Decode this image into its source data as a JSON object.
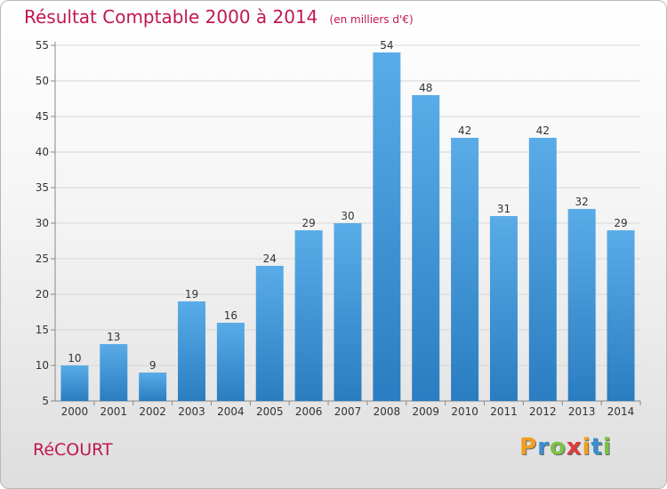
{
  "chart_data": {
    "type": "bar",
    "title": "Résultat Comptable 2000 à 2014",
    "subtitle": "(en milliers d'€)",
    "categories": [
      "2000",
      "2001",
      "2002",
      "2003",
      "2004",
      "2005",
      "2006",
      "2007",
      "2008",
      "2009",
      "2010",
      "2011",
      "2012",
      "2013",
      "2014"
    ],
    "values": [
      10,
      13,
      9,
      19,
      16,
      24,
      29,
      30,
      54,
      48,
      42,
      31,
      42,
      32,
      29
    ],
    "ylim": [
      5,
      55
    ],
    "yticks": [
      5,
      10,
      15,
      20,
      25,
      30,
      35,
      40,
      45,
      50,
      55
    ],
    "xlabel": "",
    "ylabel": "",
    "grid": true,
    "bar_color_top": "#5aace8",
    "bar_color_bottom": "#2a7dc0"
  },
  "commune": "RéCOURT",
  "brand": {
    "letters": [
      "P",
      "r",
      "o",
      "x",
      "i",
      "t",
      "i"
    ],
    "colors": [
      "#f0a020",
      "#3a8fd0",
      "#7cc242",
      "#e03a3a",
      "#f0a020",
      "#3a8fd0",
      "#7cc242"
    ]
  },
  "colors": {
    "title": "#c0184f",
    "grid": "#d6d6d6",
    "axis": "#888888"
  }
}
